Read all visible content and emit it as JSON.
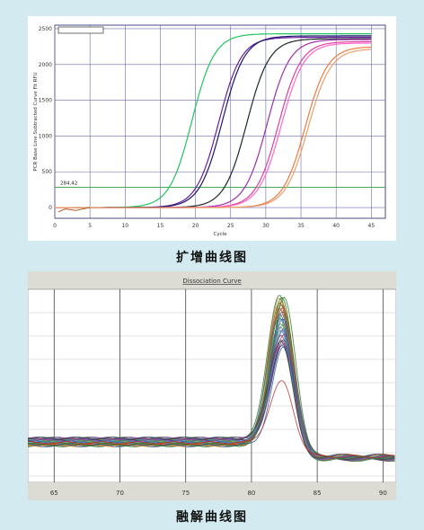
{
  "captions": {
    "amplification": "扩增曲线图",
    "melt": "融解曲线图"
  },
  "chart_data": [
    {
      "type": "line",
      "title": "",
      "xlabel": "Cycle",
      "ylabel": "PCR Base Line Subtracted Curve Fit RFU",
      "xlim": [
        0,
        47
      ],
      "ylim": [
        -150,
        2550
      ],
      "xticks": [
        0,
        5,
        10,
        15,
        20,
        25,
        30,
        35,
        40,
        45
      ],
      "yticks": [
        0,
        500,
        1000,
        1500,
        2000,
        2500
      ],
      "grid": true,
      "threshold": {
        "value": 284.42,
        "label": "284.42",
        "color": "#2e9e3e"
      },
      "series_model": "sigmoid",
      "series": [
        {
          "color": "#22c45e",
          "midpoint": 19.5,
          "plateau": 2430
        },
        {
          "color": "#6a1b9a",
          "midpoint": 23.3,
          "plateau": 2380
        },
        {
          "color": "#1a1a6e",
          "midpoint": 23.8,
          "plateau": 2400
        },
        {
          "color": "#1d2a2a",
          "midpoint": 27.3,
          "plateau": 2360
        },
        {
          "color": "#9b2fae",
          "midpoint": 30.2,
          "plateau": 2350
        },
        {
          "color": "#e0409a",
          "midpoint": 31.8,
          "plateau": 2320
        },
        {
          "color": "#ff66cc",
          "midpoint": 32.2,
          "plateau": 2300
        },
        {
          "color": "#f07a40",
          "midpoint": 35.6,
          "plateau": 2250
        },
        {
          "color": "#e8a070",
          "midpoint": 36.0,
          "plateau": 2220
        }
      ]
    },
    {
      "type": "line",
      "title": "Dissociation Curve",
      "xlabel": "",
      "ylabel": "",
      "xlim": [
        63,
        91
      ],
      "xticks": [
        65,
        70,
        75,
        80,
        85,
        90
      ],
      "grid": true,
      "peak_temperature": 82.3,
      "series_colors": [
        "#2a7a2a",
        "#c03030",
        "#3050c0",
        "#30a0a0",
        "#8040a0",
        "#d08030",
        "#506080",
        "#60a040",
        "#a03060",
        "#2060a0",
        "#806020",
        "#40a080",
        "#7050c0",
        "#3a3a3a"
      ]
    }
  ]
}
